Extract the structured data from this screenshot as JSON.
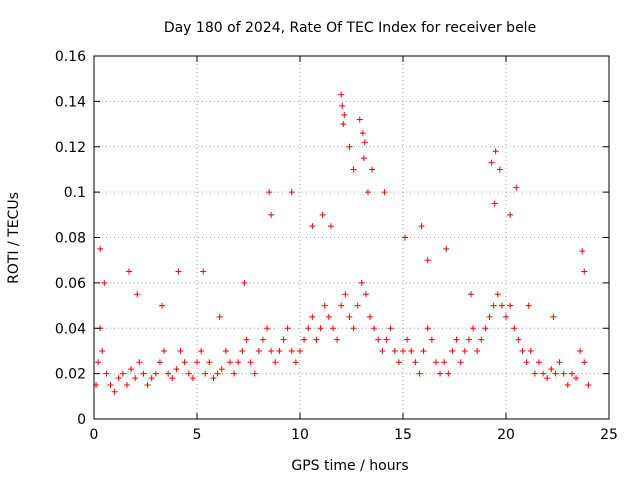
{
  "chart_data": {
    "type": "scatter",
    "title": "Day 180 of 2024, Rate Of TEC Index for receiver bele",
    "xlabel": "GPS time / hours",
    "ylabel": "ROTI / TECUs",
    "xlim": [
      0,
      25
    ],
    "ylim": [
      0,
      0.16
    ],
    "xticks": [
      0,
      5,
      10,
      15,
      20,
      25
    ],
    "xtick_labels": [
      "0",
      "5",
      "10",
      "15",
      "20",
      "25"
    ],
    "yticks": [
      0,
      0.02,
      0.04,
      0.06,
      0.08,
      0.1,
      0.12,
      0.14,
      0.16
    ],
    "ytick_labels": [
      "0",
      "0.02",
      "0.04",
      "0.06",
      "0.08",
      "0.1",
      "0.12",
      "0.14",
      "0.16"
    ],
    "grid": true,
    "legend": "none",
    "marker": "plus",
    "series": [
      {
        "color": "#ff0000",
        "x": [
          0.1,
          0.2,
          0.3,
          0.4,
          0.6,
          0.8,
          1.0,
          1.2,
          1.4,
          1.6,
          1.8,
          2.0,
          2.2,
          2.4,
          2.6,
          2.8,
          3.0,
          3.2,
          3.4,
          3.6,
          3.8,
          4.0,
          4.2,
          4.4,
          4.6,
          4.8,
          5.0,
          5.2,
          5.4,
          5.6,
          5.8,
          6.0,
          6.2,
          6.4,
          6.6,
          6.8,
          7.0,
          7.2,
          7.4,
          7.6,
          7.8,
          8.0,
          8.2,
          8.4,
          8.6,
          8.8,
          9.0,
          9.2,
          9.4,
          9.6,
          9.8,
          10.0,
          10.2,
          10.4,
          10.6,
          10.8,
          11.0,
          11.2,
          11.4,
          11.6,
          11.8,
          12.0,
          12.2,
          12.4,
          12.6,
          12.8,
          13.0,
          13.2,
          13.4,
          13.6,
          13.8,
          14.0,
          14.2,
          14.4,
          14.6,
          14.8,
          15.0,
          15.2,
          15.4,
          15.6,
          15.8,
          16.0,
          16.2,
          16.4,
          16.6,
          16.8,
          17.0,
          17.2,
          17.4,
          17.6,
          17.8,
          18.0,
          18.2,
          18.4,
          18.6,
          18.8,
          19.0,
          19.2,
          19.4,
          19.6,
          19.8,
          20.0,
          20.2,
          20.4,
          20.6,
          20.8,
          21.0,
          21.2,
          21.4,
          21.6,
          21.8,
          22.0,
          22.2,
          22.4,
          22.6,
          22.8,
          23.0,
          23.2,
          23.4,
          23.6,
          23.8,
          24.0,
          0.3,
          0.5,
          1.7,
          2.1,
          3.3,
          4.1,
          5.3,
          6.1,
          7.3,
          8.5,
          8.6,
          9.6,
          10.6,
          11.1,
          11.5,
          12.0,
          12.1,
          12.4,
          12.6,
          12.9,
          13.1,
          13.3,
          13.5,
          14.1,
          15.1,
          15.9,
          16.2,
          17.1,
          18.3,
          19.3,
          19.5,
          19.7,
          20.2,
          20.5,
          21.1,
          22.3,
          23.7,
          23.8,
          12.05,
          12.15,
          13.05,
          13.15,
          19.45
        ],
        "y": [
          0.015,
          0.025,
          0.04,
          0.03,
          0.02,
          0.015,
          0.012,
          0.018,
          0.02,
          0.015,
          0.022,
          0.018,
          0.025,
          0.02,
          0.015,
          0.018,
          0.02,
          0.025,
          0.03,
          0.02,
          0.018,
          0.022,
          0.03,
          0.025,
          0.02,
          0.018,
          0.025,
          0.03,
          0.02,
          0.025,
          0.018,
          0.02,
          0.022,
          0.03,
          0.025,
          0.02,
          0.025,
          0.03,
          0.035,
          0.025,
          0.02,
          0.03,
          0.035,
          0.04,
          0.03,
          0.025,
          0.03,
          0.035,
          0.04,
          0.03,
          0.025,
          0.03,
          0.035,
          0.04,
          0.045,
          0.035,
          0.04,
          0.05,
          0.045,
          0.04,
          0.035,
          0.05,
          0.055,
          0.045,
          0.04,
          0.05,
          0.06,
          0.055,
          0.045,
          0.04,
          0.035,
          0.03,
          0.035,
          0.04,
          0.03,
          0.025,
          0.03,
          0.035,
          0.03,
          0.025,
          0.02,
          0.03,
          0.04,
          0.035,
          0.025,
          0.02,
          0.025,
          0.02,
          0.03,
          0.035,
          0.025,
          0.03,
          0.035,
          0.04,
          0.03,
          0.035,
          0.04,
          0.045,
          0.05,
          0.055,
          0.05,
          0.045,
          0.05,
          0.04,
          0.035,
          0.03,
          0.025,
          0.03,
          0.02,
          0.025,
          0.02,
          0.018,
          0.022,
          0.02,
          0.025,
          0.02,
          0.015,
          0.02,
          0.018,
          0.03,
          0.025,
          0.015,
          0.075,
          0.06,
          0.065,
          0.055,
          0.05,
          0.065,
          0.065,
          0.045,
          0.06,
          0.1,
          0.09,
          0.1,
          0.085,
          0.09,
          0.085,
          0.143,
          0.13,
          0.12,
          0.11,
          0.132,
          0.115,
          0.1,
          0.11,
          0.1,
          0.08,
          0.085,
          0.07,
          0.075,
          0.055,
          0.113,
          0.118,
          0.11,
          0.09,
          0.102,
          0.05,
          0.045,
          0.074,
          0.065,
          0.138,
          0.134,
          0.126,
          0.122,
          0.095
        ]
      }
    ]
  }
}
